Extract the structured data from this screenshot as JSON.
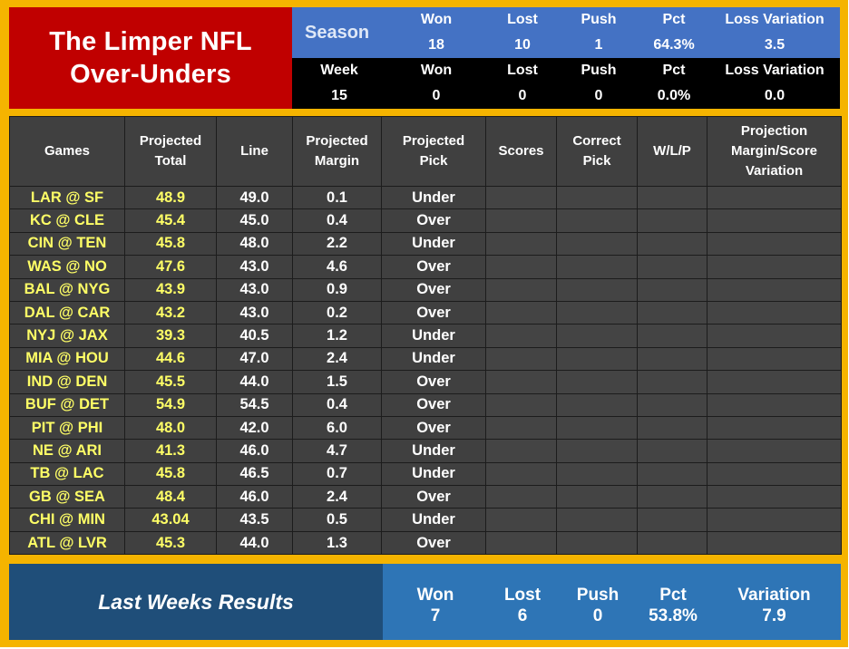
{
  "title": {
    "line1": "The Limper NFL",
    "line2": "Over-Unders"
  },
  "season": {
    "label": "Season",
    "headers": [
      "Won",
      "Lost",
      "Push",
      "Pct",
      "Loss Variation"
    ],
    "values": [
      "18",
      "10",
      "1",
      "64.3%",
      "3.5"
    ]
  },
  "week": {
    "headers": [
      "Week",
      "Won",
      "Lost",
      "Push",
      "Pct",
      "Loss Variation"
    ],
    "values": [
      "15",
      "0",
      "0",
      "0",
      "0.0%",
      "0.0"
    ]
  },
  "table": {
    "headers": [
      [
        "Games"
      ],
      [
        "Projected",
        "Total"
      ],
      [
        "Line"
      ],
      [
        "Projected",
        "Margin"
      ],
      [
        "Projected",
        "Pick"
      ],
      [
        "Scores"
      ],
      [
        "Correct",
        "Pick"
      ],
      [
        "W/L/P"
      ],
      [
        "Projection",
        "Margin/Score",
        "Variation"
      ]
    ],
    "rows": [
      {
        "game": "LAR @ SF",
        "proj_total": "48.9",
        "line": "49.0",
        "margin": "0.1",
        "pick": "Under"
      },
      {
        "game": "KC @ CLE",
        "proj_total": "45.4",
        "line": "45.0",
        "margin": "0.4",
        "pick": "Over"
      },
      {
        "game": "CIN @ TEN",
        "proj_total": "45.8",
        "line": "48.0",
        "margin": "2.2",
        "pick": "Under"
      },
      {
        "game": "WAS @ NO",
        "proj_total": "47.6",
        "line": "43.0",
        "margin": "4.6",
        "pick": "Over"
      },
      {
        "game": "BAL @ NYG",
        "proj_total": "43.9",
        "line": "43.0",
        "margin": "0.9",
        "pick": "Over"
      },
      {
        "game": "DAL @ CAR",
        "proj_total": "43.2",
        "line": "43.0",
        "margin": "0.2",
        "pick": "Over"
      },
      {
        "game": "NYJ @ JAX",
        "proj_total": "39.3",
        "line": "40.5",
        "margin": "1.2",
        "pick": "Under"
      },
      {
        "game": "MIA @ HOU",
        "proj_total": "44.6",
        "line": "47.0",
        "margin": "2.4",
        "pick": "Under"
      },
      {
        "game": "IND @ DEN",
        "proj_total": "45.5",
        "line": "44.0",
        "margin": "1.5",
        "pick": "Over"
      },
      {
        "game": "BUF @ DET",
        "proj_total": "54.9",
        "line": "54.5",
        "margin": "0.4",
        "pick": "Over"
      },
      {
        "game": "PIT @ PHI",
        "proj_total": "48.0",
        "line": "42.0",
        "margin": "6.0",
        "pick": "Over"
      },
      {
        "game": "NE @ ARI",
        "proj_total": "41.3",
        "line": "46.0",
        "margin": "4.7",
        "pick": "Under"
      },
      {
        "game": "TB @ LAC",
        "proj_total": "45.8",
        "line": "46.5",
        "margin": "0.7",
        "pick": "Under"
      },
      {
        "game": "GB @ SEA",
        "proj_total": "48.4",
        "line": "46.0",
        "margin": "2.4",
        "pick": "Over"
      },
      {
        "game": "CHI @ MIN",
        "proj_total": "43.04",
        "line": "43.5",
        "margin": "0.5",
        "pick": "Under"
      },
      {
        "game": "ATL @ LVR",
        "proj_total": "45.3",
        "line": "44.0",
        "margin": "1.3",
        "pick": "Over"
      }
    ]
  },
  "last_week": {
    "label": "Last Weeks Results",
    "headers": [
      "Won",
      "Lost",
      "Push",
      "Pct",
      "Variation"
    ],
    "values": [
      "7",
      "6",
      "0",
      "53.8%",
      "7.9"
    ]
  },
  "colors": {
    "border_gold": "#f5b400",
    "title_red": "#c00000",
    "season_blue": "#4472c4",
    "table_gray": "#404040",
    "highlight_yellow": "#ffff66",
    "footer_navy": "#1f4e79",
    "footer_blue": "#2e75b6"
  }
}
